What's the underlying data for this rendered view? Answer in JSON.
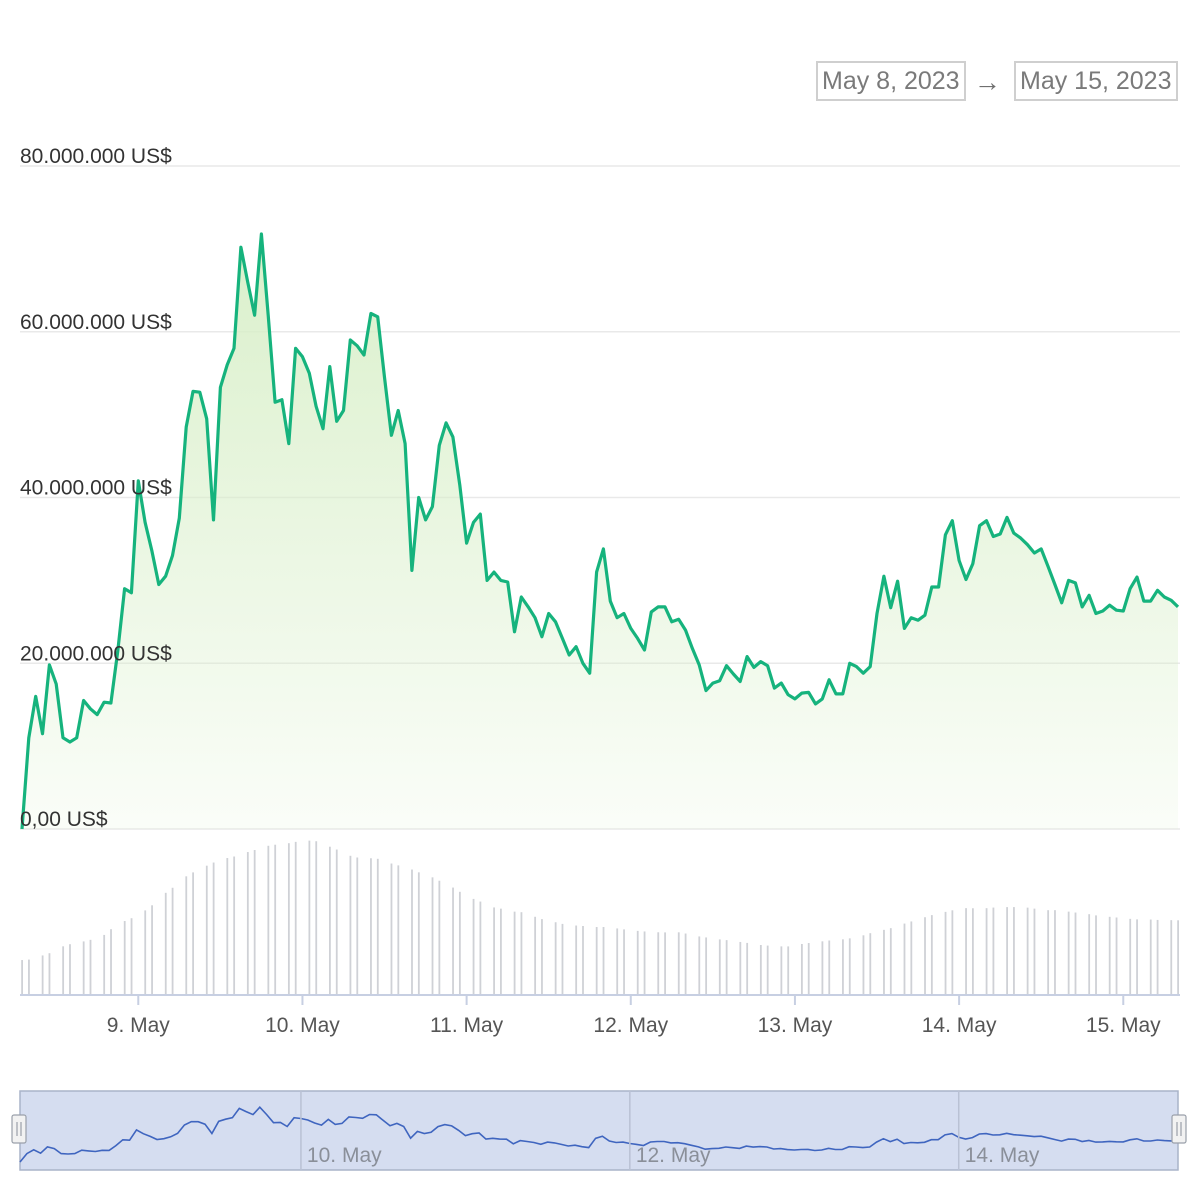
{
  "range_selector": {
    "from": "May 8, 2023",
    "arrow": "→",
    "to": "May 15, 2023"
  },
  "colors": {
    "line": "#16b37d",
    "area_top": "#d8efc8",
    "volume_bar": "#cfd1d6",
    "navigator_fill": "#d5ddf0",
    "navigator_line": "#3f65bf",
    "grid": "#e9e9e9",
    "axis_text": "#333333",
    "tick_text": "#555555"
  },
  "chart_data": {
    "type": "area",
    "title": "",
    "x_start": "2023-05-08T07:00",
    "x_step_hours": 1,
    "y_ticks": [
      "0,00 US$",
      "20.000.000 US$",
      "40.000.000 US$",
      "60.000.000 US$",
      "80.000.000 US$"
    ],
    "ylim": [
      0,
      80000000
    ],
    "grid": true,
    "x_ticks": [
      {
        "label": "9. May",
        "t": "2023-05-09T00:00"
      },
      {
        "label": "10. May",
        "t": "2023-05-10T00:00"
      },
      {
        "label": "11. May",
        "t": "2023-05-11T00:00"
      },
      {
        "label": "12. May",
        "t": "2023-05-12T00:00"
      },
      {
        "label": "13. May",
        "t": "2023-05-13T00:00"
      },
      {
        "label": "14. May",
        "t": "2023-05-14T00:00"
      },
      {
        "label": "15. May",
        "t": "2023-05-15T00:00"
      }
    ],
    "navigator_ticks": [
      {
        "label": "10. May",
        "t": "2023-05-10T00:00"
      },
      {
        "label": "12. May",
        "t": "2023-05-12T00:00"
      },
      {
        "label": "14. May",
        "t": "2023-05-14T00:00"
      }
    ],
    "values": [
      0,
      11000000,
      16000000,
      11500000,
      19800000,
      17500000,
      11000000,
      10500000,
      11000000,
      15500000,
      14500000,
      13800000,
      15300000,
      15200000,
      21500000,
      29000000,
      28500000,
      42000000,
      37000000,
      33500000,
      29500000,
      30500000,
      33000000,
      37500000,
      48500000,
      52800000,
      52700000,
      49500000,
      37300000,
      53300000,
      56000000,
      58000000,
      70200000,
      66000000,
      62000000,
      71800000,
      62000000,
      51500000,
      51800000,
      46500000,
      58000000,
      57000000,
      55000000,
      51000000,
      48300000,
      55800000,
      49200000,
      50500000,
      59000000,
      58300000,
      57200000,
      62200000,
      61800000,
      54500000,
      47500000,
      50500000,
      46500000,
      31200000,
      40000000,
      37300000,
      38900000,
      46300000,
      49000000,
      47300000,
      41500000,
      34500000,
      37000000,
      38000000,
      30000000,
      31000000,
      30000000,
      29800000,
      23800000,
      28000000,
      26800000,
      25500000,
      23200000,
      26000000,
      25000000,
      23000000,
      21000000,
      22000000,
      20000000,
      18800000,
      31000000,
      33800000,
      27500000,
      25500000,
      26000000,
      24200000,
      23000000,
      21600000,
      26200000,
      26800000,
      26800000,
      25000000,
      25300000,
      24000000,
      21800000,
      19800000,
      16700000,
      17600000,
      17900000,
      19700000,
      18700000,
      17800000,
      20800000,
      19500000,
      20200000,
      19700000,
      17000000,
      17600000,
      16200000,
      15700000,
      16400000,
      16500000,
      15100000,
      15700000,
      18000000,
      16300000,
      16300000,
      20000000,
      19600000,
      18800000,
      19600000,
      26000000,
      30500000,
      26700000,
      29900000,
      24200000,
      25500000,
      25200000,
      25800000,
      29200000,
      29200000,
      35500000,
      37200000,
      32400000,
      30100000,
      32000000,
      36600000,
      37200000,
      35300000,
      35600000,
      37600000,
      35700000,
      35100000,
      34300000,
      33300000,
      33800000,
      31700000,
      29500000,
      27300000,
      30000000,
      29700000,
      26800000,
      28200000,
      26000000,
      26300000,
      27000000,
      26400000,
      26300000,
      29000000,
      30400000,
      27500000,
      27500000,
      28800000,
      28000000,
      27600000,
      26800000
    ]
  }
}
